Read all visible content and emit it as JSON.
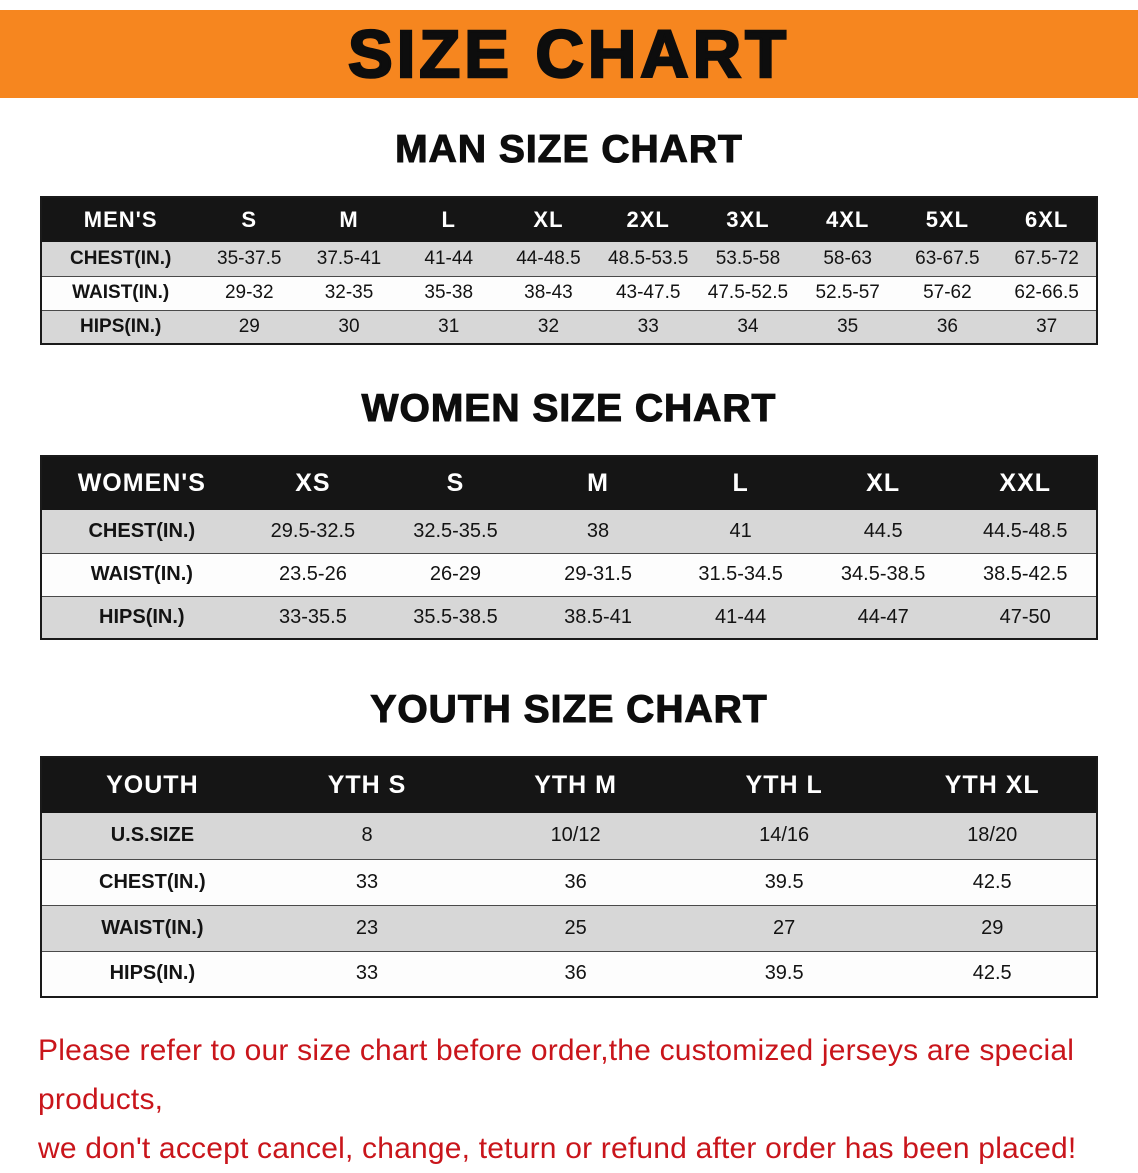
{
  "banner": {
    "title": "SIZE CHART",
    "bg_color": "#f6861f",
    "text_color": "#0d0d0d"
  },
  "sections": [
    {
      "heading": "MAN SIZE CHART",
      "table": {
        "header": [
          "MEN'S",
          "S",
          "M",
          "L",
          "XL",
          "2XL",
          "3XL",
          "4XL",
          "5XL",
          "6XL"
        ],
        "rows": [
          [
            "CHEST(IN.)",
            "35-37.5",
            "37.5-41",
            "41-44",
            "44-48.5",
            "48.5-53.5",
            "53.5-58",
            "58-63",
            "63-67.5",
            "67.5-72"
          ],
          [
            "WAIST(IN.)",
            "29-32",
            "32-35",
            "35-38",
            "38-43",
            "43-47.5",
            "47.5-52.5",
            "52.5-57",
            "57-62",
            "62-66.5"
          ],
          [
            "HIPS(IN.)",
            "29",
            "30",
            "31",
            "32",
            "33",
            "34",
            "35",
            "36",
            "37"
          ]
        ]
      }
    },
    {
      "heading": "WOMEN SIZE CHART",
      "table": {
        "header": [
          "WOMEN'S",
          "XS",
          "S",
          "M",
          "L",
          "XL",
          "XXL"
        ],
        "rows": [
          [
            "CHEST(IN.)",
            "29.5-32.5",
            "32.5-35.5",
            "38",
            "41",
            "44.5",
            "44.5-48.5"
          ],
          [
            "WAIST(IN.)",
            "23.5-26",
            "26-29",
            "29-31.5",
            "31.5-34.5",
            "34.5-38.5",
            "38.5-42.5"
          ],
          [
            "HIPS(IN.)",
            "33-35.5",
            "35.5-38.5",
            "38.5-41",
            "41-44",
            "44-47",
            "47-50"
          ]
        ]
      }
    },
    {
      "heading": "YOUTH SIZE CHART",
      "table": {
        "header": [
          "YOUTH",
          "YTH S",
          "YTH M",
          "YTH L",
          "YTH XL"
        ],
        "rows": [
          [
            "U.S.SIZE",
            "8",
            "10/12",
            "14/16",
            "18/20"
          ],
          [
            "CHEST(IN.)",
            "33",
            "36",
            "39.5",
            "42.5"
          ],
          [
            "WAIST(IN.)",
            "23",
            "25",
            "27",
            "29"
          ],
          [
            "HIPS(IN.)",
            "33",
            "36",
            "39.5",
            "42.5"
          ]
        ]
      }
    }
  ],
  "disclaimer": {
    "line1": "Please refer to our size chart before order,the customized jerseys are special products,",
    "line2": "we don't accept cancel, change, teturn or refund after order has been placed!",
    "text_color": "#c9151b"
  }
}
